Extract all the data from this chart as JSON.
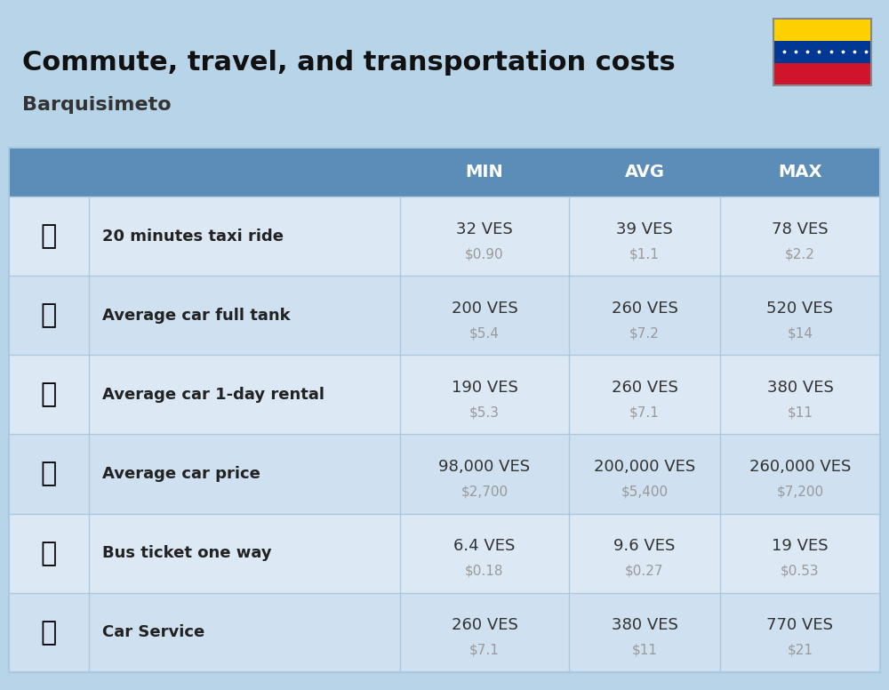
{
  "title": "Commute, travel, and transportation costs",
  "subtitle": "Barquisimeto",
  "bg_color": "#b8d4e8",
  "header_color": "#5b8db8",
  "header_text_color": "#ffffff",
  "row_bg_colors": [
    "#d6e8f5",
    "#c8dff0"
  ],
  "col_headers": [
    "MIN",
    "AVG",
    "MAX"
  ],
  "rows": [
    {
      "label": "20 minutes taxi ride",
      "emoji": "🚕",
      "min_ves": "32 VES",
      "min_usd": "$0.90",
      "avg_ves": "39 VES",
      "avg_usd": "$1.1",
      "max_ves": "78 VES",
      "max_usd": "$2.2"
    },
    {
      "label": "Average car full tank",
      "emoji": "⛽",
      "min_ves": "200 VES",
      "min_usd": "$5.4",
      "avg_ves": "260 VES",
      "avg_usd": "$7.2",
      "max_ves": "520 VES",
      "max_usd": "$14"
    },
    {
      "label": "Average car 1-day rental",
      "emoji": "🚙",
      "min_ves": "190 VES",
      "min_usd": "$5.3",
      "avg_ves": "260 VES",
      "avg_usd": "$7.1",
      "max_ves": "380 VES",
      "max_usd": "$11"
    },
    {
      "label": "Average car price",
      "emoji": "🚗",
      "min_ves": "98,000 VES",
      "min_usd": "$2,700",
      "avg_ves": "200,000 VES",
      "avg_usd": "$5,400",
      "max_ves": "260,000 VES",
      "max_usd": "$7,200"
    },
    {
      "label": "Bus ticket one way",
      "emoji": "🚌",
      "min_ves": "6.4 VES",
      "min_usd": "$0.18",
      "avg_ves": "9.6 VES",
      "avg_usd": "$0.27",
      "max_ves": "19 VES",
      "max_usd": "$0.53"
    },
    {
      "label": "Car Service",
      "emoji": "🚗",
      "min_ves": "260 VES",
      "min_usd": "$7.1",
      "avg_ves": "380 VES",
      "avg_usd": "$11",
      "max_ves": "770 VES",
      "max_usd": "$21"
    }
  ],
  "icon_texts": [
    "🚕",
    "⛽️",
    "🚙",
    "🚗",
    "🚌",
    "🔧"
  ],
  "ves_color": "#333333",
  "usd_color": "#999999",
  "label_color": "#222222",
  "divider_color": "#aac8e0",
  "title_fontsize": 22,
  "subtitle_fontsize": 16,
  "header_fontsize": 14,
  "label_fontsize": 13,
  "value_fontsize": 13,
  "usd_fontsize": 11
}
